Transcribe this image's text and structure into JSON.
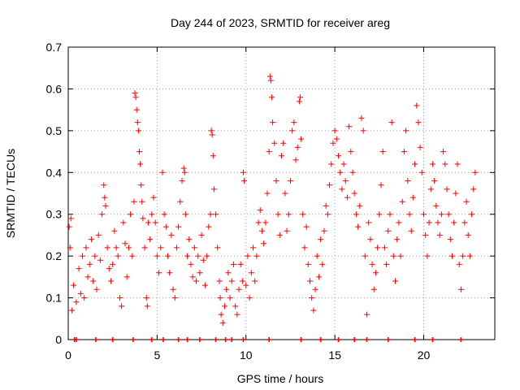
{
  "chart_data": {
    "type": "scatter",
    "title": "Day 244 of 2023, SRMTID for receiver areg",
    "xlabel": "GPS time / hours",
    "ylabel": "SRMTID / TECUs",
    "xlim": [
      0,
      24
    ],
    "ylim": [
      0,
      0.7
    ],
    "xticks": [
      0,
      5,
      10,
      15,
      20
    ],
    "yticks": [
      0,
      0.1,
      0.2,
      0.3,
      0.4,
      0.5,
      0.6,
      0.7
    ],
    "grid": true,
    "marker": "+",
    "marker_color": "#ff0000",
    "series": [
      {
        "name": "SRMTID",
        "points": [
          [
            0.05,
            0.27
          ],
          [
            0.1,
            0.22
          ],
          [
            0.15,
            0.29
          ],
          [
            0.2,
            0.07
          ],
          [
            0.3,
            0.13
          ],
          [
            0.45,
            0.09
          ],
          [
            0.6,
            0.17
          ],
          [
            0.7,
            0.11
          ],
          [
            0.8,
            0.2
          ],
          [
            0.9,
            0.1
          ],
          [
            1.0,
            0.22
          ],
          [
            1.1,
            0.15
          ],
          [
            1.2,
            0.18
          ],
          [
            1.3,
            0.24
          ],
          [
            1.4,
            0.14
          ],
          [
            1.5,
            0.2
          ],
          [
            1.6,
            0.12
          ],
          [
            1.7,
            0.25
          ],
          [
            1.8,
            0.19
          ],
          [
            1.9,
            0.3
          ],
          [
            2.0,
            0.37
          ],
          [
            2.05,
            0.34
          ],
          [
            2.1,
            0.32
          ],
          [
            2.2,
            0.22
          ],
          [
            2.3,
            0.17
          ],
          [
            2.4,
            0.14
          ],
          [
            2.5,
            0.18
          ],
          [
            2.6,
            0.26
          ],
          [
            2.7,
            0.22
          ],
          [
            2.8,
            0.2
          ],
          [
            2.9,
            0.1
          ],
          [
            3.0,
            0.08
          ],
          [
            3.1,
            0.28
          ],
          [
            3.2,
            0.23
          ],
          [
            3.3,
            0.15
          ],
          [
            3.4,
            0.22
          ],
          [
            3.5,
            0.3
          ],
          [
            3.6,
            0.2
          ],
          [
            3.7,
            0.33
          ],
          [
            3.75,
            0.59
          ],
          [
            3.8,
            0.58
          ],
          [
            3.85,
            0.55
          ],
          [
            3.9,
            0.52
          ],
          [
            3.95,
            0.5
          ],
          [
            4.0,
            0.45
          ],
          [
            4.05,
            0.42
          ],
          [
            4.1,
            0.37
          ],
          [
            4.15,
            0.33
          ],
          [
            4.2,
            0.29
          ],
          [
            4.3,
            0.22
          ],
          [
            4.4,
            0.1
          ],
          [
            4.45,
            0.08
          ],
          [
            4.5,
            0.28
          ],
          [
            4.6,
            0.24
          ],
          [
            4.7,
            0.3
          ],
          [
            4.8,
            0.34
          ],
          [
            4.9,
            0.28
          ],
          [
            5.0,
            0.2
          ],
          [
            5.1,
            0.16
          ],
          [
            5.2,
            0.22
          ],
          [
            5.3,
            0.4
          ],
          [
            5.4,
            0.3
          ],
          [
            5.5,
            0.27
          ],
          [
            5.6,
            0.2
          ],
          [
            5.7,
            0.16
          ],
          [
            5.8,
            0.25
          ],
          [
            5.9,
            0.12
          ],
          [
            6.0,
            0.1
          ],
          [
            6.1,
            0.22
          ],
          [
            6.2,
            0.27
          ],
          [
            6.3,
            0.33
          ],
          [
            6.4,
            0.38
          ],
          [
            6.5,
            0.41
          ],
          [
            6.55,
            0.4
          ],
          [
            6.6,
            0.3
          ],
          [
            6.7,
            0.2
          ],
          [
            6.8,
            0.24
          ],
          [
            6.9,
            0.18
          ],
          [
            7.0,
            0.15
          ],
          [
            7.1,
            0.22
          ],
          [
            7.2,
            0.14
          ],
          [
            7.3,
            0.2
          ],
          [
            7.4,
            0.16
          ],
          [
            7.5,
            0.25
          ],
          [
            7.6,
            0.19
          ],
          [
            7.7,
            0.13
          ],
          [
            7.8,
            0.2
          ],
          [
            7.9,
            0.27
          ],
          [
            8.0,
            0.3
          ],
          [
            8.05,
            0.5
          ],
          [
            8.1,
            0.49
          ],
          [
            8.15,
            0.44
          ],
          [
            8.2,
            0.36
          ],
          [
            8.3,
            0.3
          ],
          [
            8.4,
            0.22
          ],
          [
            8.5,
            0.14
          ],
          [
            8.55,
            0.1
          ],
          [
            8.6,
            0.06
          ],
          [
            8.7,
            0.04
          ],
          [
            8.8,
            0.08
          ],
          [
            8.9,
            0.12
          ],
          [
            9.0,
            0.16
          ],
          [
            9.1,
            0.1
          ],
          [
            9.2,
            0.14
          ],
          [
            9.3,
            0.18
          ],
          [
            9.4,
            0.08
          ],
          [
            9.5,
            0.06
          ],
          [
            9.6,
            0.12
          ],
          [
            9.7,
            0.18
          ],
          [
            9.8,
            0.14
          ],
          [
            9.85,
            0.4
          ],
          [
            9.9,
            0.38
          ],
          [
            10.0,
            0.13
          ],
          [
            10.1,
            0.2
          ],
          [
            10.2,
            0.1
          ],
          [
            10.3,
            0.16
          ],
          [
            10.4,
            0.22
          ],
          [
            10.5,
            0.14
          ],
          [
            10.6,
            0.2
          ],
          [
            10.7,
            0.28
          ],
          [
            10.8,
            0.31
          ],
          [
            10.9,
            0.26
          ],
          [
            11.0,
            0.23
          ],
          [
            11.1,
            0.28
          ],
          [
            11.2,
            0.35
          ],
          [
            11.3,
            0.45
          ],
          [
            11.35,
            0.63
          ],
          [
            11.4,
            0.62
          ],
          [
            11.45,
            0.58
          ],
          [
            11.5,
            0.52
          ],
          [
            11.6,
            0.47
          ],
          [
            11.7,
            0.38
          ],
          [
            11.8,
            0.3
          ],
          [
            11.9,
            0.25
          ],
          [
            12.0,
            0.44
          ],
          [
            12.1,
            0.47
          ],
          [
            12.2,
            0.35
          ],
          [
            12.3,
            0.26
          ],
          [
            12.4,
            0.3
          ],
          [
            12.5,
            0.38
          ],
          [
            12.6,
            0.5
          ],
          [
            12.7,
            0.52
          ],
          [
            12.8,
            0.43
          ],
          [
            12.9,
            0.46
          ],
          [
            13.0,
            0.57
          ],
          [
            13.05,
            0.58
          ],
          [
            13.1,
            0.48
          ],
          [
            13.2,
            0.3
          ],
          [
            13.3,
            0.22
          ],
          [
            13.4,
            0.27
          ],
          [
            13.5,
            0.18
          ],
          [
            13.6,
            0.14
          ],
          [
            13.7,
            0.1
          ],
          [
            13.8,
            0.07
          ],
          [
            13.9,
            0.12
          ],
          [
            14.0,
            0.2
          ],
          [
            14.1,
            0.15
          ],
          [
            14.2,
            0.24
          ],
          [
            14.3,
            0.18
          ],
          [
            14.4,
            0.26
          ],
          [
            14.5,
            0.32
          ],
          [
            14.6,
            0.3
          ],
          [
            14.7,
            0.37
          ],
          [
            14.8,
            0.42
          ],
          [
            14.9,
            0.47
          ],
          [
            15.0,
            0.5
          ],
          [
            15.1,
            0.48
          ],
          [
            15.2,
            0.44
          ],
          [
            15.3,
            0.4
          ],
          [
            15.4,
            0.36
          ],
          [
            15.5,
            0.42
          ],
          [
            15.6,
            0.38
          ],
          [
            15.7,
            0.34
          ],
          [
            15.8,
            0.51
          ],
          [
            15.9,
            0.45
          ],
          [
            16.0,
            0.4
          ],
          [
            16.1,
            0.35
          ],
          [
            16.2,
            0.3
          ],
          [
            16.3,
            0.27
          ],
          [
            16.4,
            0.32
          ],
          [
            16.5,
            0.53
          ],
          [
            16.6,
            0.5
          ],
          [
            16.7,
            0.2
          ],
          [
            16.8,
            0.06
          ],
          [
            16.9,
            0.28
          ],
          [
            17.0,
            0.24
          ],
          [
            17.1,
            0.18
          ],
          [
            17.2,
            0.12
          ],
          [
            17.3,
            0.16
          ],
          [
            17.4,
            0.22
          ],
          [
            17.5,
            0.3
          ],
          [
            17.6,
            0.37
          ],
          [
            17.7,
            0.45
          ],
          [
            17.8,
            0.22
          ],
          [
            17.9,
            0.18
          ],
          [
            18.0,
            0.26
          ],
          [
            18.1,
            0.3
          ],
          [
            18.2,
            0.52
          ],
          [
            18.3,
            0.2
          ],
          [
            18.4,
            0.14
          ],
          [
            18.5,
            0.24
          ],
          [
            18.6,
            0.28
          ],
          [
            18.7,
            0.2
          ],
          [
            18.8,
            0.33
          ],
          [
            18.9,
            0.45
          ],
          [
            19.0,
            0.5
          ],
          [
            19.1,
            0.38
          ],
          [
            19.2,
            0.3
          ],
          [
            19.3,
            0.26
          ],
          [
            19.4,
            0.34
          ],
          [
            19.5,
            0.42
          ],
          [
            19.6,
            0.56
          ],
          [
            19.7,
            0.52
          ],
          [
            19.8,
            0.46
          ],
          [
            19.9,
            0.4
          ],
          [
            20.0,
            0.3
          ],
          [
            20.1,
            0.25
          ],
          [
            20.2,
            0.2
          ],
          [
            20.3,
            0.28
          ],
          [
            20.4,
            0.36
          ],
          [
            20.5,
            0.42
          ],
          [
            20.6,
            0.38
          ],
          [
            20.7,
            0.32
          ],
          [
            20.8,
            0.28
          ],
          [
            20.9,
            0.25
          ],
          [
            21.0,
            0.3
          ],
          [
            21.1,
            0.45
          ],
          [
            21.2,
            0.42
          ],
          [
            21.3,
            0.36
          ],
          [
            21.4,
            0.3
          ],
          [
            21.5,
            0.24
          ],
          [
            21.6,
            0.2
          ],
          [
            21.7,
            0.28
          ],
          [
            21.8,
            0.35
          ],
          [
            21.9,
            0.42
          ],
          [
            22.0,
            0.18
          ],
          [
            22.1,
            0.12
          ],
          [
            22.2,
            0.2
          ],
          [
            22.3,
            0.28
          ],
          [
            22.4,
            0.33
          ],
          [
            22.5,
            0.25
          ],
          [
            22.6,
            0.2
          ],
          [
            22.7,
            0.3
          ],
          [
            22.8,
            0.36
          ],
          [
            22.9,
            0.4
          ]
        ]
      }
    ],
    "axis_markers": [
      0.35,
      0.45,
      1.55,
      2.5,
      3.65,
      4.7,
      5.35,
      6.2,
      6.7,
      7.4,
      8.3,
      8.85,
      9.2,
      9.85,
      11.3,
      13.1,
      14.2,
      15.2,
      16.1,
      16.8,
      18.0,
      19.5,
      20.5,
      22.1
    ]
  }
}
